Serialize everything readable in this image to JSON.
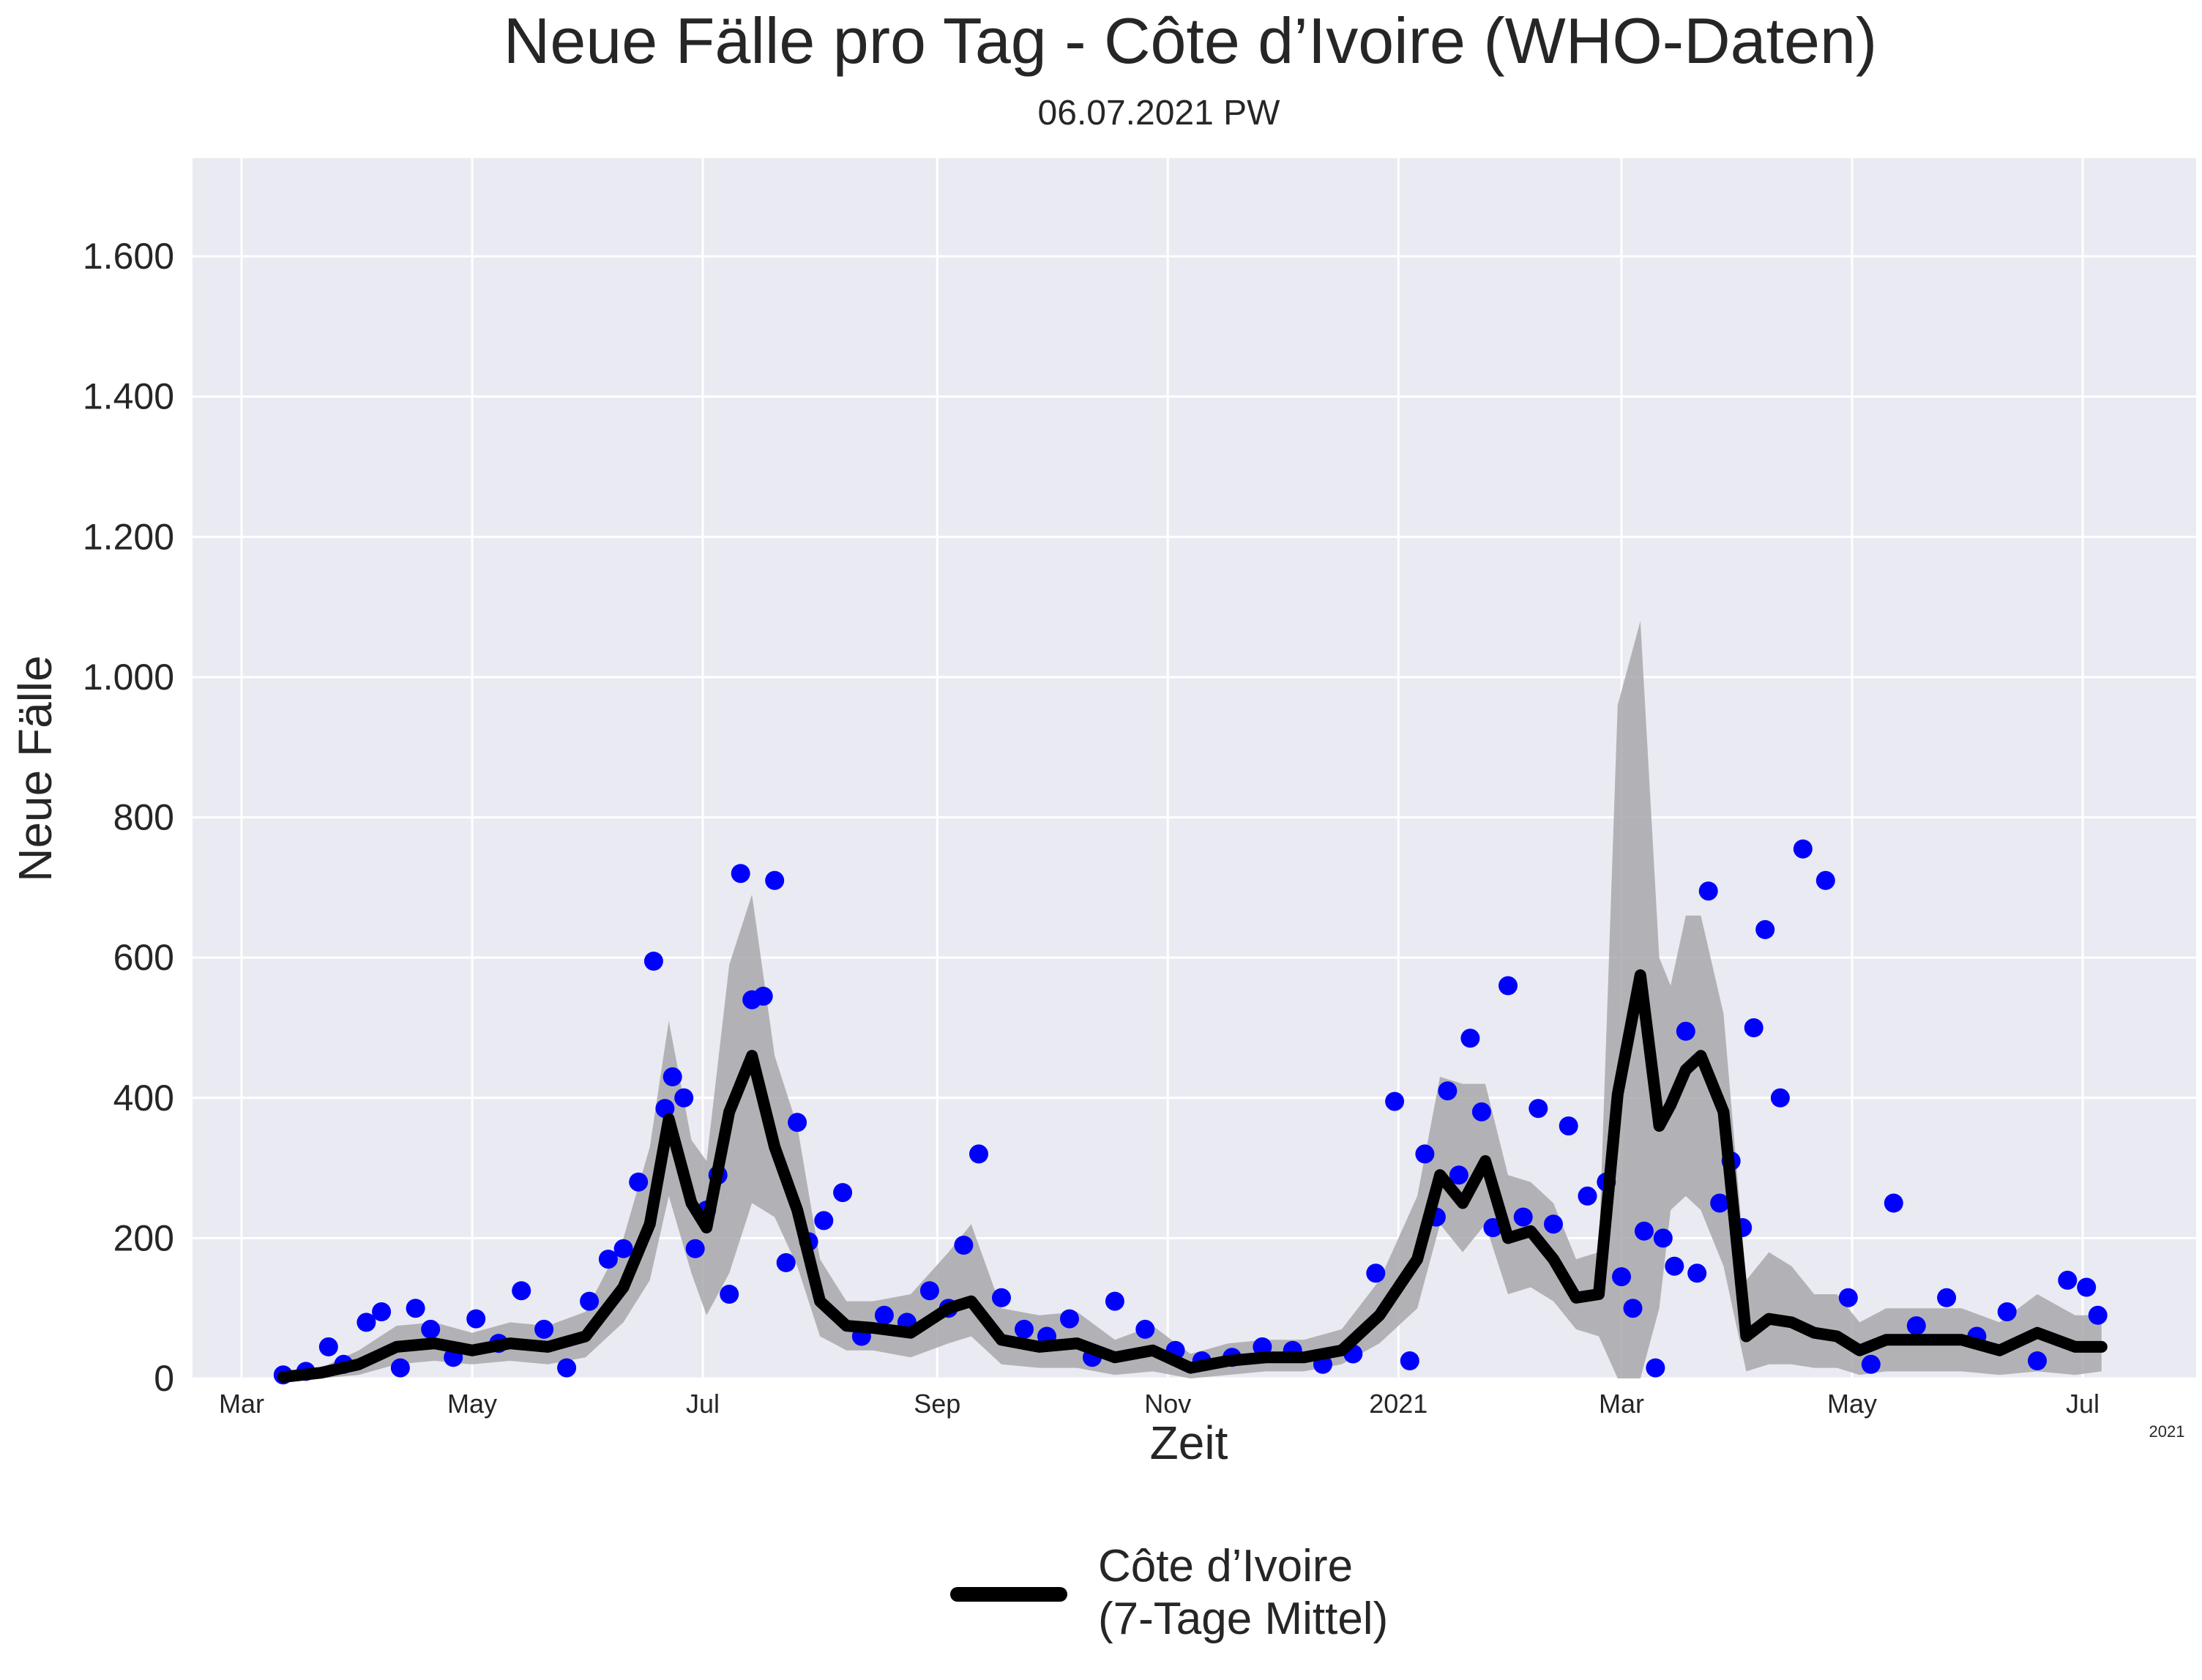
{
  "chart_data": {
    "type": "line",
    "title": "Neue Fälle pro Tag - Côte d’Ivoire (WHO-Daten)",
    "subtitle": "06.07.2021 PW",
    "xlabel": "Zeit",
    "ylabel": "Neue Fälle",
    "ylim": [
      0,
      1740
    ],
    "grid": true,
    "legend_position": "bottom-center",
    "x_tick_labels": [
      "Mar",
      "May",
      "Jul",
      "Sep",
      "Nov",
      "2021",
      "Mar",
      "May",
      "Jul"
    ],
    "x_offset_label": "2021",
    "y_ticks": [
      0,
      200,
      400,
      600,
      800,
      1000,
      1200,
      1400,
      1600
    ],
    "y_tick_labels": [
      "0",
      "200",
      "400",
      "600",
      "800",
      "1.000",
      "1.200",
      "1.400",
      "1.600"
    ],
    "x": [
      "2020-03-12",
      "2020-03-22",
      "2020-04-01",
      "2020-04-11",
      "2020-04-21",
      "2020-05-01",
      "2020-05-11",
      "2020-05-21",
      "2020-05-31",
      "2020-06-10",
      "2020-06-17",
      "2020-06-22",
      "2020-06-28",
      "2020-07-02",
      "2020-07-08",
      "2020-07-14",
      "2020-07-20",
      "2020-07-26",
      "2020-08-01",
      "2020-08-08",
      "2020-08-15",
      "2020-08-25",
      "2020-09-04",
      "2020-09-10",
      "2020-09-18",
      "2020-09-28",
      "2020-10-08",
      "2020-10-18",
      "2020-10-28",
      "2020-11-07",
      "2020-11-17",
      "2020-11-27",
      "2020-12-07",
      "2020-12-17",
      "2020-12-27",
      "2021-01-06",
      "2021-01-12",
      "2021-01-18",
      "2021-01-24",
      "2021-01-30",
      "2021-02-05",
      "2021-02-11",
      "2021-02-17",
      "2021-02-23",
      "2021-02-28",
      "2021-03-06",
      "2021-03-11",
      "2021-03-14",
      "2021-03-18",
      "2021-03-22",
      "2021-03-28",
      "2021-04-03",
      "2021-04-09",
      "2021-04-15",
      "2021-04-21",
      "2021-04-27",
      "2021-05-03",
      "2021-05-10",
      "2021-05-20",
      "2021-05-30",
      "2021-06-09",
      "2021-06-19",
      "2021-06-29",
      "2021-07-06"
    ],
    "series": [
      {
        "name": "Côte d’Ivoire (7-Tage Mittel)",
        "color": "#000000",
        "values": [
          2,
          8,
          20,
          45,
          50,
          40,
          50,
          45,
          60,
          130,
          220,
          370,
          250,
          215,
          380,
          460,
          330,
          240,
          110,
          75,
          72,
          65,
          100,
          110,
          55,
          45,
          50,
          30,
          40,
          15,
          25,
          30,
          30,
          40,
          90,
          170,
          290,
          250,
          310,
          200,
          210,
          170,
          115,
          120,
          405,
          575,
          360,
          390,
          440,
          460,
          380,
          60,
          85,
          80,
          65,
          60,
          40,
          55,
          55,
          55,
          40,
          65,
          45,
          45
        ]
      }
    ],
    "band": {
      "color": "#a8a8ac",
      "lower": [
        0,
        0,
        5,
        20,
        25,
        20,
        25,
        20,
        30,
        80,
        140,
        260,
        150,
        90,
        150,
        250,
        230,
        160,
        60,
        40,
        40,
        30,
        50,
        60,
        20,
        15,
        15,
        5,
        10,
        0,
        5,
        10,
        10,
        20,
        50,
        100,
        220,
        180,
        220,
        120,
        130,
        110,
        70,
        60,
        0,
        0,
        100,
        240,
        260,
        240,
        160,
        10,
        20,
        20,
        15,
        15,
        5,
        10,
        10,
        10,
        5,
        10,
        5,
        10
      ],
      "upper": [
        5,
        15,
        40,
        75,
        80,
        65,
        80,
        75,
        95,
        200,
        330,
        510,
        340,
        310,
        590,
        690,
        460,
        360,
        170,
        110,
        110,
        120,
        180,
        220,
        100,
        90,
        95,
        55,
        75,
        35,
        50,
        55,
        55,
        70,
        140,
        260,
        430,
        420,
        420,
        290,
        280,
        250,
        170,
        180,
        960,
        1080,
        600,
        560,
        660,
        660,
        520,
        140,
        180,
        160,
        120,
        120,
        80,
        100,
        100,
        100,
        80,
        120,
        90,
        90
      ]
    },
    "points": {
      "color": "#0000ff",
      "x": [
        "2020-03-12",
        "2020-03-18",
        "2020-03-24",
        "2020-03-28",
        "2020-04-03",
        "2020-04-07",
        "2020-04-12",
        "2020-04-16",
        "2020-04-20",
        "2020-04-26",
        "2020-05-02",
        "2020-05-08",
        "2020-05-14",
        "2020-05-20",
        "2020-05-26",
        "2020-06-01",
        "2020-06-06",
        "2020-06-10",
        "2020-06-14",
        "2020-06-18",
        "2020-06-21",
        "2020-06-23",
        "2020-06-26",
        "2020-06-29",
        "2020-07-02",
        "2020-07-05",
        "2020-07-08",
        "2020-07-11",
        "2020-07-14",
        "2020-07-17",
        "2020-07-20",
        "2020-07-23",
        "2020-07-26",
        "2020-07-29",
        "2020-08-02",
        "2020-08-07",
        "2020-08-12",
        "2020-08-18",
        "2020-08-24",
        "2020-08-30",
        "2020-09-04",
        "2020-09-08",
        "2020-09-12",
        "2020-09-18",
        "2020-09-24",
        "2020-09-30",
        "2020-10-06",
        "2020-10-12",
        "2020-10-18",
        "2020-10-26",
        "2020-11-03",
        "2020-11-10",
        "2020-11-18",
        "2020-11-26",
        "2020-12-04",
        "2020-12-12",
        "2020-12-20",
        "2020-12-26",
        "2020-12-31",
        "2021-01-04",
        "2021-01-08",
        "2021-01-11",
        "2021-01-14",
        "2021-01-17",
        "2021-01-20",
        "2021-01-23",
        "2021-01-26",
        "2021-01-30",
        "2021-02-03",
        "2021-02-07",
        "2021-02-11",
        "2021-02-15",
        "2021-02-20",
        "2021-02-25",
        "2021-03-01",
        "2021-03-04",
        "2021-03-07",
        "2021-03-10",
        "2021-03-12",
        "2021-03-15",
        "2021-03-18",
        "2021-03-21",
        "2021-03-24",
        "2021-03-27",
        "2021-03-30",
        "2021-04-02",
        "2021-04-05",
        "2021-04-08",
        "2021-04-12",
        "2021-04-18",
        "2021-04-24",
        "2021-04-30",
        "2021-05-06",
        "2021-05-12",
        "2021-05-18",
        "2021-05-26",
        "2021-06-03",
        "2021-06-11",
        "2021-06-19",
        "2021-06-27",
        "2021-07-02",
        "2021-07-05"
      ],
      "y": [
        5,
        10,
        45,
        20,
        80,
        95,
        15,
        100,
        70,
        30,
        85,
        50,
        125,
        70,
        15,
        110,
        170,
        185,
        280,
        595,
        385,
        430,
        400,
        185,
        240,
        290,
        120,
        720,
        540,
        545,
        710,
        165,
        365,
        195,
        225,
        265,
        60,
        90,
        80,
        125,
        100,
        190,
        320,
        115,
        70,
        60,
        85,
        30,
        110,
        70,
        40,
        25,
        30,
        45,
        40,
        20,
        35,
        150,
        395,
        25,
        320,
        230,
        410,
        290,
        485,
        380,
        215,
        560,
        230,
        385,
        220,
        360,
        260,
        280,
        145,
        100,
        210,
        15,
        200,
        160,
        495,
        150,
        695,
        250,
        310,
        215,
        500,
        640,
        400,
        755,
        710,
        115,
        20,
        250,
        75,
        115,
        60,
        95,
        25,
        140,
        130,
        90
      ]
    }
  }
}
